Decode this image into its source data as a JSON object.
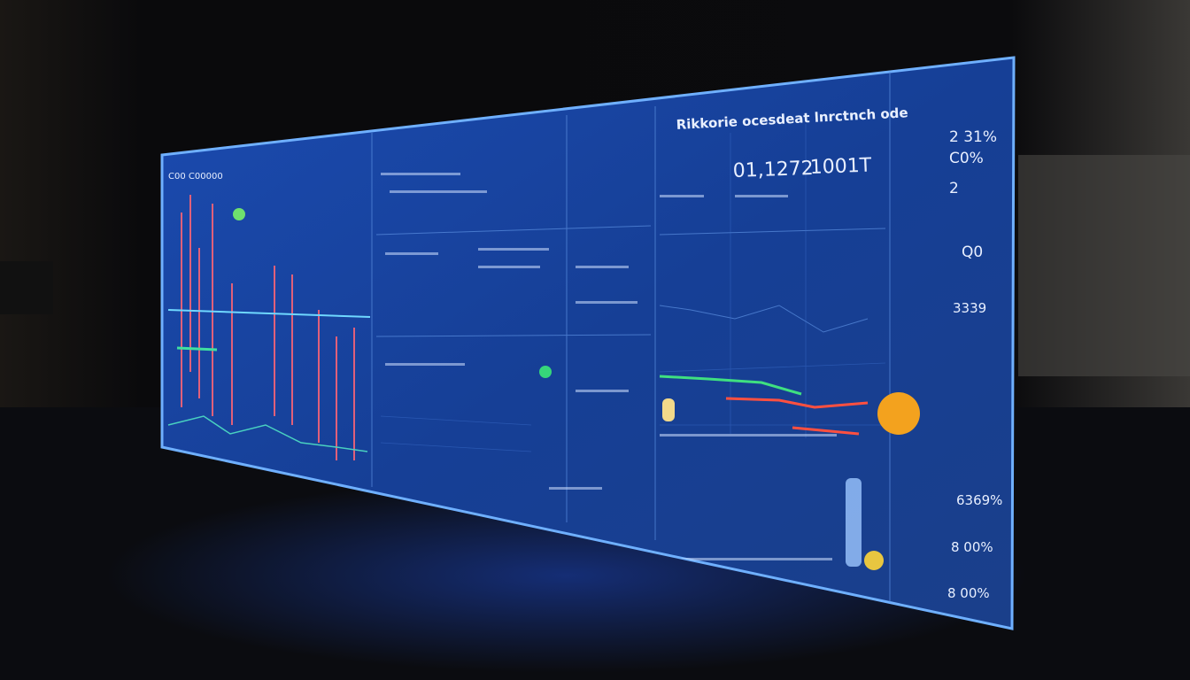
{
  "header": {
    "title": "Rikkorie ocesdeat lnrctnch ode"
  },
  "sidebar": {
    "title": "C00 C00000"
  },
  "metrics": {
    "primary": "01,1272",
    "secondary": "1001T"
  },
  "side_stats": [
    "2 31%",
    "C0%",
    "2",
    "Q0",
    "3339",
    "6369%",
    "8 00%",
    "8 00%"
  ]
}
